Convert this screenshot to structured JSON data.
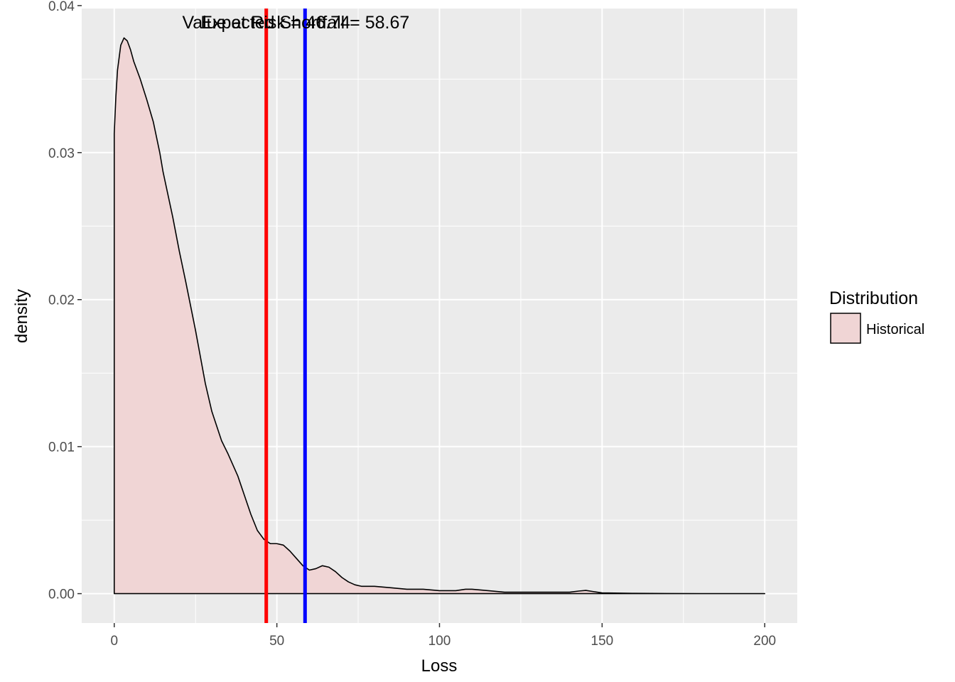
{
  "chart_data": {
    "type": "area",
    "title": "",
    "xlabel": "Loss",
    "ylabel": "density",
    "xlim": [
      -10,
      210
    ],
    "ylim": [
      -0.002,
      0.0398
    ],
    "x_ticks": [
      0,
      50,
      100,
      150,
      200
    ],
    "y_ticks": [
      0,
      0.01,
      0.02,
      0.03,
      0.04
    ],
    "x_tick_labels": [
      "0",
      "50",
      "100",
      "150",
      "200"
    ],
    "y_tick_labels": [
      "0.00",
      "0.01",
      "0.02",
      "0.03",
      "0.04"
    ],
    "grid": true,
    "series": [
      {
        "name": "Historical",
        "x": [
          0,
          0.5,
          1,
          2,
          3,
          4,
          5,
          6,
          8,
          10,
          12,
          14,
          15,
          18,
          20,
          22,
          25,
          28,
          30,
          33,
          35,
          38,
          40,
          42,
          44,
          46,
          48,
          50,
          52,
          54,
          56,
          58,
          60,
          62,
          64,
          66,
          68,
          70,
          72,
          74,
          76,
          80,
          85,
          90,
          95,
          100,
          105,
          108,
          110,
          115,
          120,
          125,
          130,
          135,
          140,
          143,
          145,
          147,
          150,
          160,
          170,
          180,
          190,
          200
        ],
        "y": [
          0.0313,
          0.0338,
          0.0356,
          0.0373,
          0.0378,
          0.0376,
          0.037,
          0.0362,
          0.035,
          0.0336,
          0.0321,
          0.03,
          0.0287,
          0.0256,
          0.0233,
          0.0212,
          0.0179,
          0.0143,
          0.0124,
          0.0104,
          0.0095,
          0.008,
          0.0067,
          0.0054,
          0.0043,
          0.0037,
          0.0034,
          0.0034,
          0.0033,
          0.0029,
          0.0024,
          0.0019,
          0.0016,
          0.0017,
          0.0019,
          0.0018,
          0.0015,
          0.0011,
          0.0008,
          0.0006,
          0.0005,
          0.0005,
          0.0004,
          0.0003,
          0.0003,
          0.0002,
          0.0002,
          0.0003,
          0.0003,
          0.0002,
          0.0001,
          0.0001,
          0.0001,
          0.0001,
          0.0001,
          0.00018,
          0.00022,
          0.00015,
          5e-05,
          2e-05,
          1e-05,
          0.0,
          0.0,
          0.0
        ],
        "fill": "#f0d5d5",
        "stroke": "#000000"
      }
    ],
    "vlines": [
      {
        "x": 46.74,
        "color": "#ff0000"
      },
      {
        "x": 58.67,
        "color": "#0000ff"
      }
    ],
    "annotations": [
      {
        "text": "Value at Risk = 46.74",
        "x": 46.74,
        "y": 0.0398
      },
      {
        "text": "Expected Shortfall = 58.67",
        "x": 58.67,
        "y": 0.0398
      }
    ],
    "legend": {
      "title": "Distribution",
      "position": "right",
      "entries": [
        {
          "label": "Historical",
          "fill": "#f0d5d5",
          "stroke": "#000000"
        }
      ]
    },
    "panel_background": "#ebebeb",
    "grid_color": "#ffffff"
  }
}
